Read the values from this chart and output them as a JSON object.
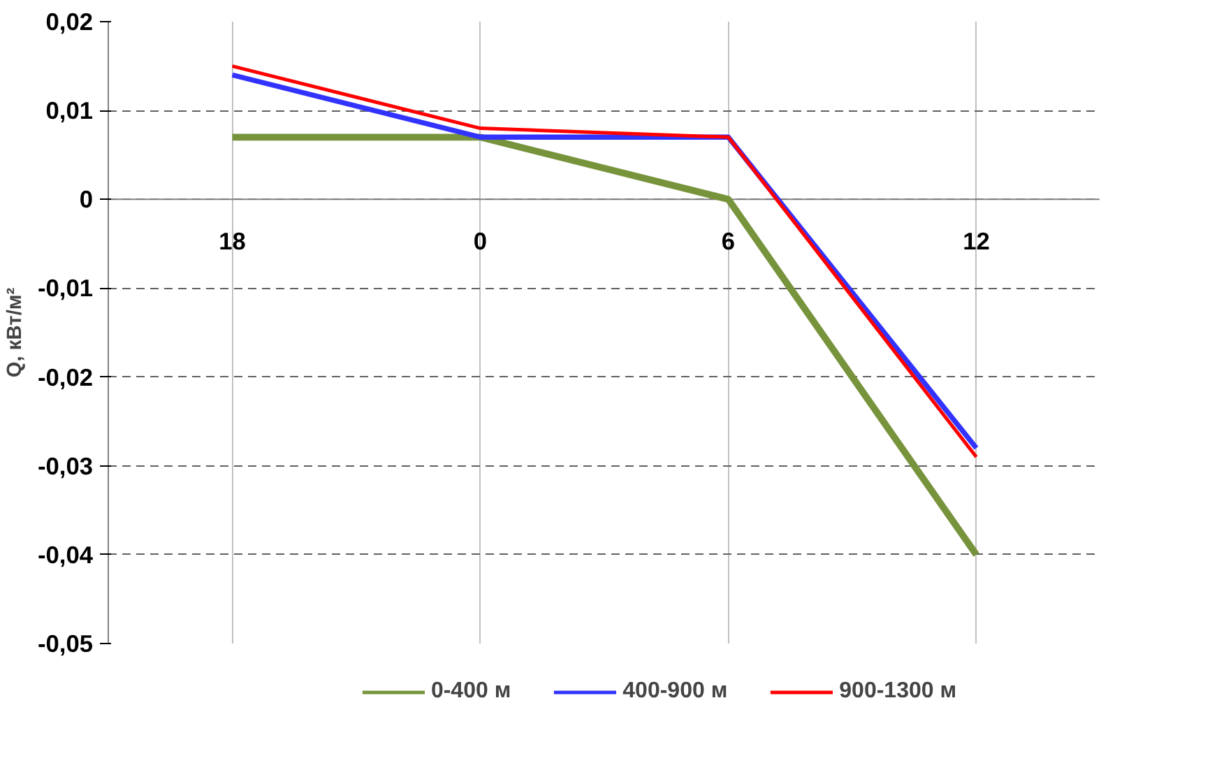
{
  "chart_data": {
    "type": "line",
    "ylabel": "Q, кВт/м²",
    "categories": [
      "18",
      "0",
      "6",
      "12"
    ],
    "series": [
      {
        "name": "0-400 м",
        "color": "#77933c",
        "values": [
          0.007,
          0.007,
          0,
          -0.04
        ]
      },
      {
        "name": "400-900 м",
        "color": "#3333ff",
        "values": [
          0.014,
          0.007,
          0.007,
          -0.028
        ]
      },
      {
        "name": "900-1300 м",
        "color": "#ff0000",
        "values": [
          0.015,
          0.008,
          0.007,
          -0.029
        ]
      }
    ],
    "ylim": [
      -0.05,
      0.02
    ],
    "yticks": [
      {
        "value": -0.05,
        "label": "-0,05"
      },
      {
        "value": -0.04,
        "label": "-0,04"
      },
      {
        "value": -0.03,
        "label": "-0,03"
      },
      {
        "value": -0.02,
        "label": "-0,02"
      },
      {
        "value": -0.01,
        "label": "-0,01"
      },
      {
        "value": 0,
        "label": "0"
      },
      {
        "value": 0.01,
        "label": "0,01"
      },
      {
        "value": 0.02,
        "label": "0,02"
      }
    ],
    "grid": true,
    "legend": "bottom",
    "marker": "none",
    "line_style": "solid"
  }
}
